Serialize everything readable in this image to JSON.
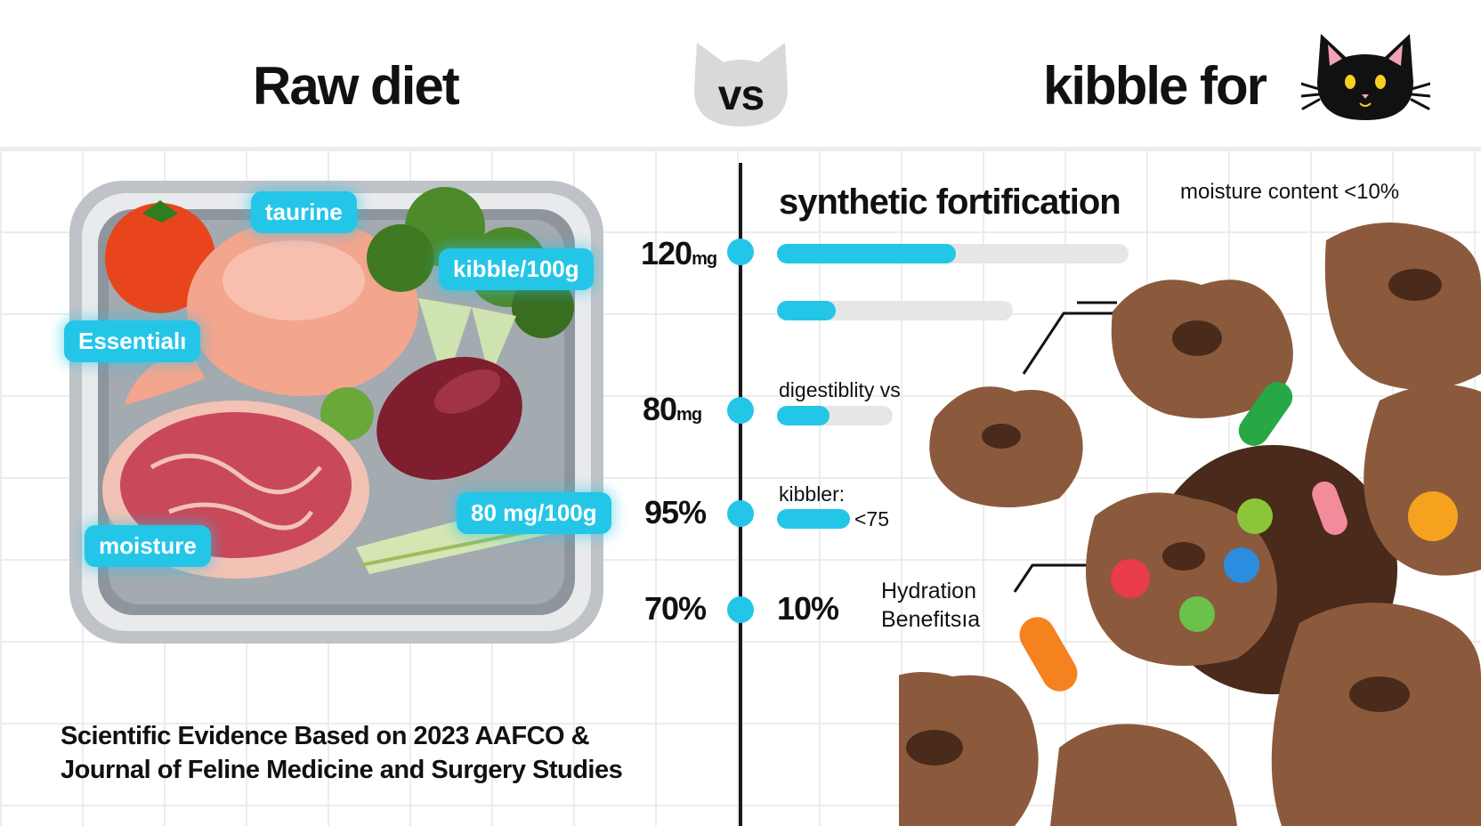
{
  "header": {
    "title_left": "Raw diet",
    "title_vs": "vs",
    "title_right": "kibble for",
    "cat_icon": "black-cat-face-icon",
    "vs_icon": "grey-cat-head-icon"
  },
  "raw_tray": {
    "tags": {
      "taurine": "taurine",
      "kibble_per_100g": "kibble/100g",
      "essential": "Essentialı",
      "moisture": "moisture",
      "mg_per_100g": "80 mg/100g"
    }
  },
  "comparison": {
    "heading": "synthetic fortification",
    "rows": [
      {
        "value": "120",
        "unit": "mg",
        "fill": 0.51
      },
      {
        "value": "",
        "unit": "",
        "fill": 0.25
      },
      {
        "label": "digestiblity vs",
        "value": "80",
        "unit": "mg",
        "fill": 0.45
      },
      {
        "label": "kibbler:",
        "value": "95%",
        "unit": "",
        "note": "<75",
        "fill": 1.0
      },
      {
        "value": "70%",
        "unit": "",
        "right_value": "10%"
      }
    ]
  },
  "kibble_side": {
    "moisture_label": "moisture content <10%",
    "hydration_label_line1": "Hydration",
    "hydration_label_line2": "Benefitsıa"
  },
  "footer": {
    "line1": "Scientific Evidence Based on 2023 AAFCO &",
    "line2": "Journal of Feline Medicine and Surgery Studies"
  },
  "colors": {
    "accent": "#24c6e8",
    "kibble": "#8b5a3c",
    "text": "#111111"
  }
}
